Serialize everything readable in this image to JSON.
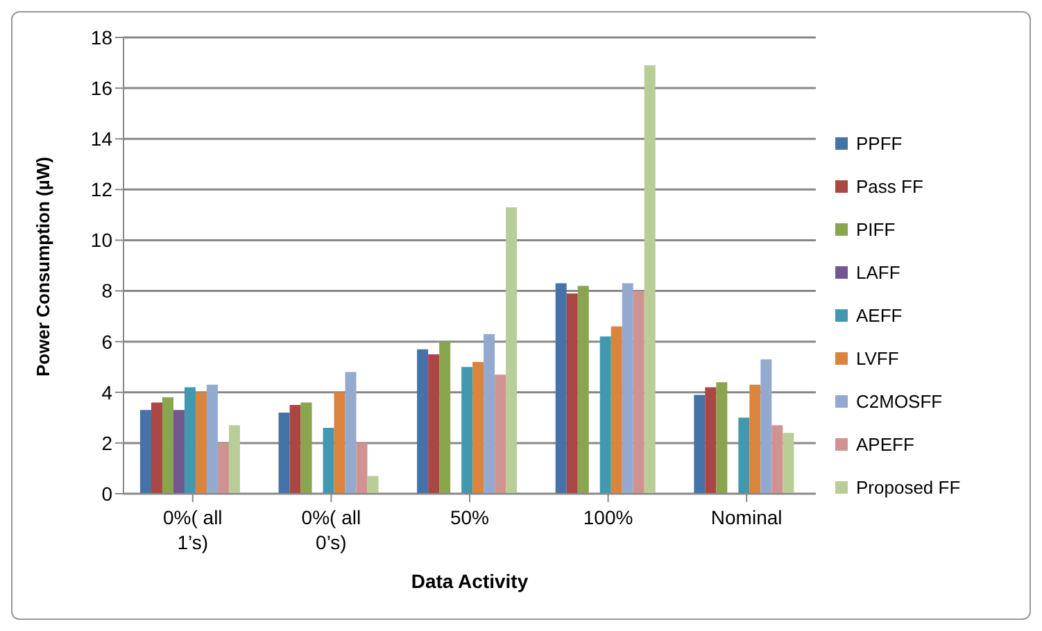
{
  "chart_data": {
    "type": "bar",
    "xlabel": "Data Activity",
    "ylabel": "Power Consumption (µW)",
    "categories": [
      "0%( all 1’s)",
      "0%( all 0’s)",
      "50%",
      "100%",
      "Nominal"
    ],
    "series": [
      {
        "name": "PPFF",
        "color": "#4572a7",
        "values": [
          3.3,
          3.2,
          5.7,
          8.3,
          3.9
        ]
      },
      {
        "name": "Pass FF",
        "color": "#aa4643",
        "values": [
          3.6,
          3.5,
          5.5,
          7.9,
          4.2
        ]
      },
      {
        "name": "PIFF",
        "color": "#89a54e",
        "values": [
          3.8,
          3.6,
          6.0,
          8.2,
          4.4
        ]
      },
      {
        "name": "LAFF",
        "color": "#71588f",
        "values": [
          3.3,
          null,
          null,
          null,
          null
        ]
      },
      {
        "name": "AEFF",
        "color": "#4198af",
        "values": [
          4.2,
          2.6,
          5.0,
          6.2,
          3.0
        ]
      },
      {
        "name": "LVFF",
        "color": "#db843d",
        "values": [
          4.0,
          4.0,
          5.2,
          6.6,
          4.3
        ]
      },
      {
        "name": "C2MOSFF",
        "color": "#93a9cf",
        "values": [
          4.3,
          4.8,
          6.3,
          8.3,
          5.3
        ]
      },
      {
        "name": "APEFF",
        "color": "#d19392",
        "values": [
          2.0,
          2.0,
          4.7,
          8.0,
          2.7
        ]
      },
      {
        "name": "Proposed FF",
        "color": "#b9cd96",
        "values": [
          2.7,
          0.7,
          11.3,
          16.9,
          2.4
        ]
      }
    ],
    "ylim": [
      0,
      18
    ],
    "yticks": [
      0,
      2,
      4,
      6,
      8,
      10,
      12,
      14,
      16,
      18
    ],
    "grid": "y",
    "legend": "right"
  }
}
